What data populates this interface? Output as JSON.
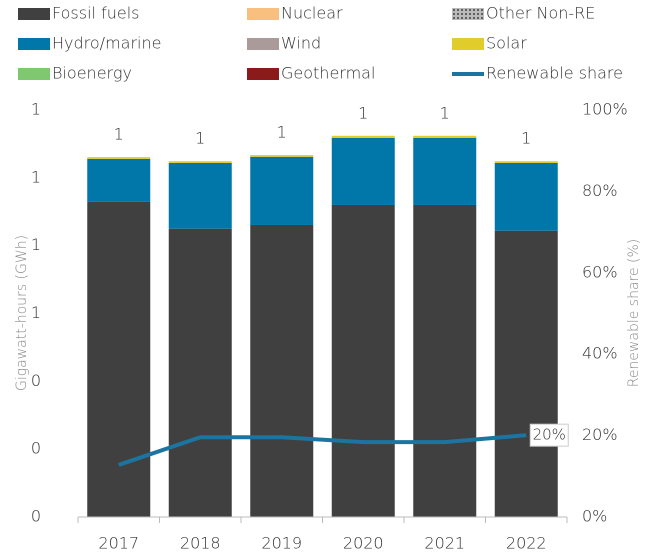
{
  "chart_data": {
    "type": "bar",
    "categories": [
      "2017",
      "2018",
      "2019",
      "2020",
      "2021",
      "2022"
    ],
    "y_label": "Gigawatt-hours (GWh)",
    "y2_label": "Renewable share (%)",
    "ylim": [
      0,
      1.2
    ],
    "yticks": [
      0,
      {
        "value": 0.2,
        "label": "0"
      },
      {
        "value": 0.4,
        "label": "0"
      },
      {
        "value": 0.6,
        "label": "1"
      },
      {
        "value": 0.8,
        "label": "1"
      },
      1,
      {
        "value": 1.2,
        "label": "1"
      }
    ],
    "y2lim": [
      0,
      100
    ],
    "y2ticks": [
      {
        "value": 0,
        "label": "0%"
      },
      {
        "value": 20,
        "label": "20%"
      },
      {
        "value": 40,
        "label": "40%"
      },
      {
        "value": 60,
        "label": "60%"
      },
      {
        "value": 80,
        "label": "80%"
      },
      {
        "value": 100,
        "label": "100%"
      }
    ],
    "series": [
      {
        "name": "Fossil fuels",
        "color": "#404040",
        "values": [
          0.929,
          0.85,
          0.861,
          0.92,
          0.92,
          0.844
        ]
      },
      {
        "name": "Nuclear",
        "color": "#f9bf7e",
        "values": [
          0,
          0,
          0,
          0,
          0,
          0
        ]
      },
      {
        "name": "Other Non-RE",
        "color": "#7f7f7f",
        "pattern": "dots",
        "values": [
          0,
          0,
          0,
          0,
          0,
          0
        ]
      },
      {
        "name": "Hydro/marine",
        "color": "#0077a8",
        "values": [
          0.127,
          0.194,
          0.201,
          0.198,
          0.198,
          0.2
        ]
      },
      {
        "name": "Wind",
        "color": "#ab9a9a",
        "values": [
          0,
          0,
          0,
          0,
          0,
          0
        ]
      },
      {
        "name": "Solar",
        "color": "#e0cc2a",
        "values": [
          0.005,
          0.005,
          0.005,
          0.006,
          0.006,
          0.005
        ]
      },
      {
        "name": "Bioenergy",
        "color": "#7fc870",
        "values": [
          0,
          0,
          0,
          0,
          0,
          0
        ]
      },
      {
        "name": "Geothermal",
        "color": "#8b1a1a",
        "values": [
          0,
          0,
          0,
          0,
          0,
          0
        ]
      },
      {
        "name": "Renewable share",
        "type": "line",
        "axis": "y2",
        "color": "#1b75a0",
        "values": [
          12.8,
          19.6,
          19.6,
          18.4,
          18.4,
          20.1
        ],
        "value_labels": [
          null,
          null,
          null,
          null,
          null,
          "20%"
        ]
      }
    ],
    "totals": [
      1.061,
      1.049,
      1.067,
      1.124,
      1.124,
      1.049
    ],
    "total_labels": [
      "1",
      "1",
      "1",
      "1",
      "1",
      "1"
    ]
  }
}
